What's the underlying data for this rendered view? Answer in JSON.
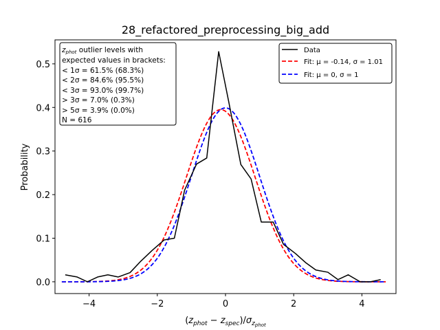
{
  "chart_data": {
    "type": "line",
    "title": "28_refactored_preprocessing_big_add",
    "xlabel": "(z_phot − z_spec)/σ_z_phot",
    "ylabel": "Probability",
    "xlim": [
      -5.0,
      5.0
    ],
    "ylim": [
      -0.027,
      0.555
    ],
    "xticks": [
      -4,
      -2,
      0,
      2,
      4
    ],
    "yticks": [
      0.0,
      0.1,
      0.2,
      0.3,
      0.4,
      0.5
    ],
    "xtick_labels": [
      "−4",
      "−2",
      "0",
      "2",
      "4"
    ],
    "ytick_labels": [
      "0.0",
      "0.1",
      "0.2",
      "0.3",
      "0.4",
      "0.5"
    ],
    "series": [
      {
        "name": "Data",
        "color": "#000000",
        "style": "solid",
        "x": [
          -4.7,
          -4.35,
          -4.05,
          -3.75,
          -3.45,
          -3.15,
          -2.8,
          -2.5,
          -2.15,
          -1.8,
          -1.5,
          -1.2,
          -0.85,
          -0.55,
          -0.2,
          0.1,
          0.45,
          0.75,
          1.05,
          1.4,
          1.7,
          2.05,
          2.35,
          2.65,
          3.0,
          3.3,
          3.6,
          3.95,
          4.25,
          4.55
        ],
        "y": [
          0.016,
          0.011,
          0.0,
          0.011,
          0.016,
          0.011,
          0.021,
          0.046,
          0.072,
          0.096,
          0.1,
          0.21,
          0.27,
          0.284,
          0.528,
          0.411,
          0.269,
          0.236,
          0.137,
          0.137,
          0.086,
          0.065,
          0.044,
          0.027,
          0.022,
          0.005,
          0.016,
          0.0,
          0.0,
          0.005
        ]
      },
      {
        "name": "Fit: μ=-0.14, σ=1.01",
        "color": "#ff0000",
        "style": "dashed",
        "mu": -0.14,
        "sigma": 1.01,
        "x_range": [
          -4.8,
          4.7
        ]
      },
      {
        "name": "Fit: μ=0, σ=1",
        "color": "#0000ff",
        "style": "dashed",
        "mu": 0.0,
        "sigma": 1.0,
        "x_range": [
          -4.8,
          4.7
        ]
      }
    ],
    "legend": {
      "location": "top-right",
      "entries": [
        "Data",
        "Fit: μ = -0.14, σ = 1.01",
        "Fit: μ = 0, σ = 1"
      ]
    },
    "annotation": {
      "location": "top-left",
      "line1_suffix": " outlier levels with",
      "lines": [
        " expected values in brackets:",
        "< 1σ = 61.5% (68.3%)",
        "< 2σ = 84.6% (95.5%)",
        "< 3σ = 93.0% (99.7%)",
        "> 3σ = 7.0% (0.3%)",
        "> 5σ = 3.9% (0.0%)",
        "N = 616"
      ]
    }
  }
}
